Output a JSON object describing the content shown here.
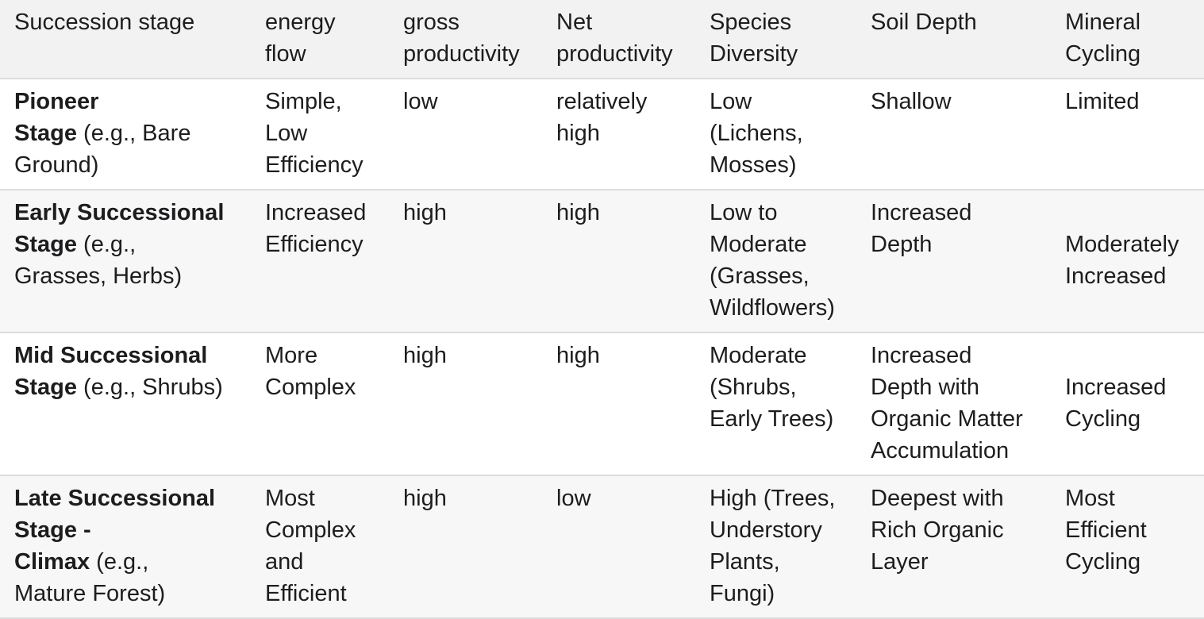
{
  "headers": [
    [
      "Succession stage"
    ],
    [
      "energy",
      "flow"
    ],
    [
      "gross",
      "productivity"
    ],
    [
      "Net",
      "productivity"
    ],
    [
      "Species",
      "Diversity"
    ],
    [
      "Soil Depth"
    ],
    [
      "Mineral",
      "Cycling"
    ]
  ],
  "rows": [
    {
      "stage_lines": [
        {
          "bold": "Pioneer",
          "rest": ""
        },
        {
          "bold": "Stage",
          "rest": " (e.g., Bare"
        },
        {
          "bold": "",
          "rest": "Ground)"
        }
      ],
      "cells": [
        [
          "Simple,",
          "Low",
          "Efficiency"
        ],
        [
          "low"
        ],
        [
          "relatively",
          "high"
        ],
        [
          "Low",
          "(Lichens,",
          "Mosses)"
        ],
        [
          "Shallow"
        ],
        [
          "Limited"
        ]
      ]
    },
    {
      "stage_lines": [
        {
          "bold": "Early Successional",
          "rest": ""
        },
        {
          "bold": "Stage",
          "rest": " (e.g.,"
        },
        {
          "bold": "",
          "rest": "Grasses, Herbs)"
        }
      ],
      "cells": [
        [
          "Increased",
          "Efficiency"
        ],
        [
          "high"
        ],
        [
          "high"
        ],
        [
          "Low to",
          "Moderate",
          "(Grasses,",
          "Wildflowers)"
        ],
        [
          "Increased",
          "Depth"
        ],
        [
          "",
          "Moderately",
          "Increased"
        ]
      ]
    },
    {
      "stage_lines": [
        {
          "bold": "Mid Successional",
          "rest": ""
        },
        {
          "bold": "Stage",
          "rest": " (e.g., Shrubs)"
        }
      ],
      "cells": [
        [
          "More",
          "Complex"
        ],
        [
          "high"
        ],
        [
          "high"
        ],
        [
          "Moderate",
          "(Shrubs,",
          "Early Trees)"
        ],
        [
          "Increased",
          "Depth with",
          "Organic Matter",
          "Accumulation"
        ],
        [
          "",
          "Increased",
          "Cycling"
        ]
      ]
    },
    {
      "stage_lines": [
        {
          "bold": "Late Successional",
          "rest": ""
        },
        {
          "bold": "Stage -",
          "rest": ""
        },
        {
          "bold": "Climax",
          "rest": " (e.g.,"
        },
        {
          "bold": "",
          "rest": "Mature Forest)"
        }
      ],
      "cells": [
        [
          "Most",
          "Complex",
          "and",
          "Efficient"
        ],
        [
          "high"
        ],
        [
          "low"
        ],
        [
          "High (Trees,",
          "Understory",
          "Plants,",
          "Fungi)"
        ],
        [
          "Deepest with",
          "Rich Organic",
          "Layer"
        ],
        [
          "Most",
          "Efficient",
          "Cycling"
        ]
      ]
    }
  ]
}
